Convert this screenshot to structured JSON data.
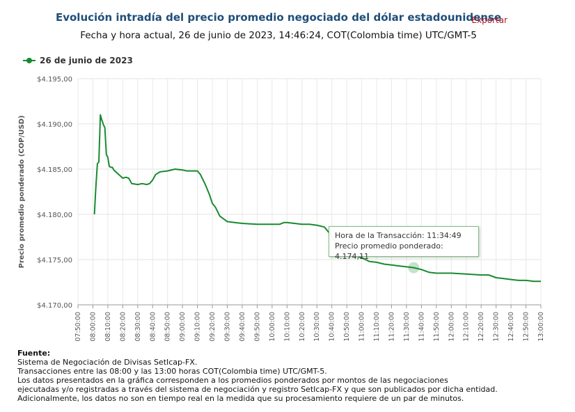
{
  "header": {
    "title": "Evolución intradía del precio promedio negociado del dólar estadounidense",
    "subtitle": "Fecha y hora actual, 26 de junio de 2023, 14:46:24, COT(Colombia time) UTC/GMT-5",
    "export_label": "Exportar"
  },
  "tooltip": {
    "line1": "Hora de la Transacción: 11:34:49",
    "line2": "Precio promedio ponderado: 4.174,11"
  },
  "footer": {
    "source_label": "Fuente:",
    "lines": [
      "Sistema de Negociación de Divisas SetIcap-FX.",
      "Transacciones entre las 08:00 y las 13:00 horas COT(Colombia time) UTC/GMT-5.",
      "Los datos presentados en la gráfica corresponden a los promedios ponderados por montos de las negociaciones",
      "ejecutadas y/o registradas a través del sistema de negociación y registro SetIcap-FX y que son publicados por dicha entidad.",
      "Adicionalmente, los datos no son en tiempo real en la medida que su procesamiento requiere de un par de minutos."
    ]
  },
  "colors": {
    "series": "#188a2e",
    "title": "#1f4e79",
    "export": "#b5121b"
  },
  "chart_data": {
    "type": "line",
    "title": "Evolución intradía del precio promedio negociado del dólar estadounidense",
    "xlabel": "Hora de la Transacción",
    "ylabel": "Precio promedio ponderado (COP/USD)",
    "ylim": [
      4170,
      4195
    ],
    "yticks": [
      4170,
      4175,
      4180,
      4185,
      4190,
      4195
    ],
    "ytick_labels": [
      "$4.170,00",
      "$4.175,00",
      "$4.180,00",
      "$4.185,00",
      "$4.190,00",
      "$4.195,00"
    ],
    "xlim": [
      "07:50:00",
      "13:00:00"
    ],
    "xtick_labels": [
      "07:50:00",
      "08:00:00",
      "08:10:00",
      "08:20:00",
      "08:30:00",
      "08:40:00",
      "08:50:00",
      "09:00:00",
      "09:10:00",
      "09:20:00",
      "09:30:00",
      "09:40:00",
      "09:50:00",
      "10:00:00",
      "10:10:00",
      "10:20:00",
      "10:30:00",
      "10:40:00",
      "10:50:00",
      "11:00:00",
      "11:10:00",
      "11:20:00",
      "11:30:00",
      "11:40:00",
      "11:50:00",
      "12:00:00",
      "12:10:00",
      "12:20:00",
      "12:30:00",
      "12:40:00",
      "12:50:00",
      "13:00:00"
    ],
    "grid": true,
    "legend_position": "top-left",
    "series": [
      {
        "name": "26 de junio de 2023",
        "x": [
          "08:01:00",
          "08:02:00",
          "08:03:00",
          "08:04:00",
          "08:05:00",
          "08:06:00",
          "08:06:30",
          "08:07:00",
          "08:08:00",
          "08:09:00",
          "08:10:00",
          "08:11:00",
          "08:12:00",
          "08:13:00",
          "08:14:00",
          "08:16:00",
          "08:20:00",
          "08:22:00",
          "08:24:00",
          "08:26:00",
          "08:30:00",
          "08:33:00",
          "08:36:00",
          "08:38:00",
          "08:40:00",
          "08:42:00",
          "08:45:00",
          "08:50:00",
          "08:55:00",
          "09:00:00",
          "09:03:00",
          "09:06:00",
          "09:10:00",
          "09:12:00",
          "09:15:00",
          "09:18:00",
          "09:20:00",
          "09:22:00",
          "09:25:00",
          "09:30:00",
          "09:35:00",
          "09:40:00",
          "09:50:00",
          "10:00:00",
          "10:05:00",
          "10:08:00",
          "10:10:00",
          "10:15:00",
          "10:20:00",
          "10:25:00",
          "10:30:00",
          "10:35:00",
          "10:40:00",
          "10:45:00",
          "10:50:00",
          "10:55:00",
          "11:00:00",
          "11:05:00",
          "11:10:00",
          "11:15:00",
          "11:20:00",
          "11:25:00",
          "11:30:00",
          "11:34:49",
          "11:40:00",
          "11:45:00",
          "11:50:00",
          "12:00:00",
          "12:10:00",
          "12:20:00",
          "12:25:00",
          "12:30:00",
          "12:35:00",
          "12:40:00",
          "12:45:00",
          "12:50:00",
          "12:55:00",
          "13:00:00"
        ],
        "y": [
          4180.0,
          4183.0,
          4185.6,
          4185.8,
          4191.0,
          4190.4,
          4190.2,
          4189.9,
          4189.6,
          4186.6,
          4186.3,
          4185.3,
          4185.2,
          4185.2,
          4184.9,
          4184.6,
          4184.0,
          4184.1,
          4184.0,
          4183.4,
          4183.3,
          4183.4,
          4183.3,
          4183.4,
          4183.8,
          4184.4,
          4184.7,
          4184.8,
          4185.0,
          4184.9,
          4184.8,
          4184.8,
          4184.8,
          4184.4,
          4183.4,
          4182.2,
          4181.2,
          4180.8,
          4179.8,
          4179.2,
          4179.1,
          4179.0,
          4178.9,
          4178.9,
          4178.9,
          4179.1,
          4179.1,
          4179.0,
          4178.9,
          4178.9,
          4178.8,
          4178.6,
          4177.6,
          4176.2,
          4175.8,
          4175.5,
          4175.2,
          4174.8,
          4174.7,
          4174.5,
          4174.4,
          4174.3,
          4174.2,
          4174.11,
          4173.9,
          4173.6,
          4173.5,
          4173.5,
          4173.4,
          4173.3,
          4173.3,
          4173.0,
          4172.9,
          4172.8,
          4172.7,
          4172.7,
          4172.6,
          4172.6
        ]
      }
    ]
  }
}
